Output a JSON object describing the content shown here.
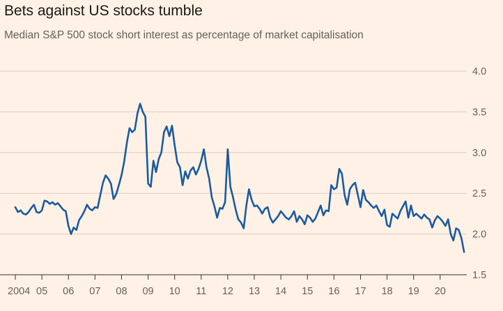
{
  "title": "Bets against US stocks tumble",
  "subtitle": "Median S&P 500 stock short interest as percentage of market capitalisation",
  "colors": {
    "background": "#fff1e5",
    "line": "#1a5aa1",
    "grid": "#d9ccc1",
    "axis": "#33302e",
    "text": "#66605c"
  },
  "chart_data": {
    "type": "line",
    "title": "Bets against US stocks tumble",
    "subtitle": "Median S&P 500 stock short interest as percentage of market capitalisation",
    "xlabel": "",
    "ylabel": "",
    "xlim": [
      2004.0,
      2020.95
    ],
    "ylim": [
      1.5,
      4.0
    ],
    "y_ticks": [
      1.5,
      2.0,
      2.5,
      3.0,
      3.5,
      4.0
    ],
    "y_tick_labels": [
      "1.5",
      "2.0",
      "2.5",
      "3.0",
      "3.5",
      "4.0"
    ],
    "x_ticks": [
      2004,
      2005,
      2006,
      2007,
      2008,
      2009,
      2010,
      2011,
      2012,
      2013,
      2014,
      2015,
      2016,
      2017,
      2018,
      2019,
      2020
    ],
    "x_tick_labels": [
      "2004",
      "05",
      "06",
      "07",
      "08",
      "09",
      "10",
      "11",
      "12",
      "13",
      "14",
      "15",
      "16",
      "17",
      "18",
      "19",
      "20"
    ],
    "grid": true,
    "y_axis_position": "right",
    "series": [
      {
        "x": [
          2004.0,
          2004.1,
          2004.2,
          2004.3,
          2004.4,
          2004.5,
          2004.6,
          2004.7,
          2004.8,
          2004.9,
          2005.0,
          2005.1,
          2005.2,
          2005.3,
          2005.4,
          2005.5,
          2005.6,
          2005.7,
          2005.8,
          2005.9,
          2006.0,
          2006.1,
          2006.2,
          2006.3,
          2006.4,
          2006.5,
          2006.6,
          2006.7,
          2006.8,
          2006.9,
          2007.0,
          2007.1,
          2007.2,
          2007.3,
          2007.4,
          2007.5,
          2007.6,
          2007.7,
          2007.8,
          2007.9,
          2008.0,
          2008.1,
          2008.2,
          2008.3,
          2008.4,
          2008.5,
          2008.6,
          2008.7,
          2008.8,
          2008.9,
          2009.0,
          2009.1,
          2009.2,
          2009.3,
          2009.4,
          2009.5,
          2009.6,
          2009.7,
          2009.8,
          2009.9,
          2010.0,
          2010.1,
          2010.2,
          2010.3,
          2010.4,
          2010.5,
          2010.6,
          2010.7,
          2010.8,
          2010.9,
          2011.0,
          2011.1,
          2011.2,
          2011.3,
          2011.4,
          2011.5,
          2011.6,
          2011.7,
          2011.8,
          2011.9,
          2012.0,
          2012.1,
          2012.2,
          2012.3,
          2012.4,
          2012.5,
          2012.6,
          2012.7,
          2012.8,
          2012.9,
          2013.0,
          2013.1,
          2013.2,
          2013.3,
          2013.4,
          2013.5,
          2013.6,
          2013.7,
          2013.8,
          2013.9,
          2014.0,
          2014.1,
          2014.2,
          2014.3,
          2014.4,
          2014.5,
          2014.6,
          2014.7,
          2014.8,
          2014.9,
          2015.0,
          2015.1,
          2015.2,
          2015.3,
          2015.4,
          2015.5,
          2015.6,
          2015.7,
          2015.8,
          2015.9,
          2016.0,
          2016.1,
          2016.2,
          2016.3,
          2016.4,
          2016.5,
          2016.6,
          2016.7,
          2016.8,
          2016.9,
          2017.0,
          2017.1,
          2017.2,
          2017.3,
          2017.4,
          2017.5,
          2017.6,
          2017.7,
          2017.8,
          2017.9,
          2018.0,
          2018.1,
          2018.2,
          2018.3,
          2018.4,
          2018.5,
          2018.6,
          2018.7,
          2018.8,
          2018.9,
          2019.0,
          2019.1,
          2019.2,
          2019.3,
          2019.4,
          2019.5,
          2019.6,
          2019.7,
          2019.8,
          2019.9,
          2020.0,
          2020.1,
          2020.2,
          2020.3,
          2020.4,
          2020.5,
          2020.6,
          2020.7,
          2020.8,
          2020.9
        ],
        "values": [
          2.33,
          2.27,
          2.29,
          2.25,
          2.24,
          2.27,
          2.32,
          2.36,
          2.27,
          2.26,
          2.29,
          2.41,
          2.4,
          2.37,
          2.39,
          2.36,
          2.38,
          2.34,
          2.3,
          2.28,
          2.1,
          2.0,
          2.08,
          2.05,
          2.17,
          2.22,
          2.28,
          2.36,
          2.31,
          2.29,
          2.33,
          2.32,
          2.48,
          2.63,
          2.72,
          2.68,
          2.62,
          2.43,
          2.49,
          2.6,
          2.72,
          2.89,
          3.12,
          3.3,
          3.25,
          3.28,
          3.48,
          3.6,
          3.5,
          3.44,
          2.62,
          2.58,
          2.9,
          2.76,
          2.92,
          3.0,
          3.25,
          3.32,
          3.2,
          3.33,
          3.09,
          2.88,
          2.82,
          2.6,
          2.77,
          2.68,
          2.78,
          2.82,
          2.73,
          2.8,
          2.9,
          3.04,
          2.82,
          2.68,
          2.45,
          2.34,
          2.2,
          2.32,
          2.31,
          2.39,
          3.04,
          2.58,
          2.45,
          2.3,
          2.18,
          2.14,
          2.07,
          2.35,
          2.55,
          2.42,
          2.34,
          2.35,
          2.31,
          2.25,
          2.31,
          2.33,
          2.2,
          2.14,
          2.18,
          2.22,
          2.28,
          2.24,
          2.2,
          2.18,
          2.22,
          2.28,
          2.15,
          2.22,
          2.18,
          2.12,
          2.23,
          2.2,
          2.15,
          2.19,
          2.27,
          2.35,
          2.23,
          2.29,
          2.28,
          2.6,
          2.55,
          2.57,
          2.8,
          2.74,
          2.48,
          2.36,
          2.55,
          2.6,
          2.63,
          2.48,
          2.33,
          2.54,
          2.42,
          2.39,
          2.35,
          2.32,
          2.35,
          2.28,
          2.22,
          2.3,
          2.11,
          2.09,
          2.25,
          2.22,
          2.19,
          2.28,
          2.34,
          2.4,
          2.2,
          2.35,
          2.22,
          2.25,
          2.22,
          2.19,
          2.24,
          2.2,
          2.18,
          2.08,
          2.17,
          2.22,
          2.19,
          2.15,
          2.1,
          2.18,
          2.0,
          1.92,
          2.07,
          2.05,
          1.95,
          1.78
        ]
      }
    ]
  }
}
